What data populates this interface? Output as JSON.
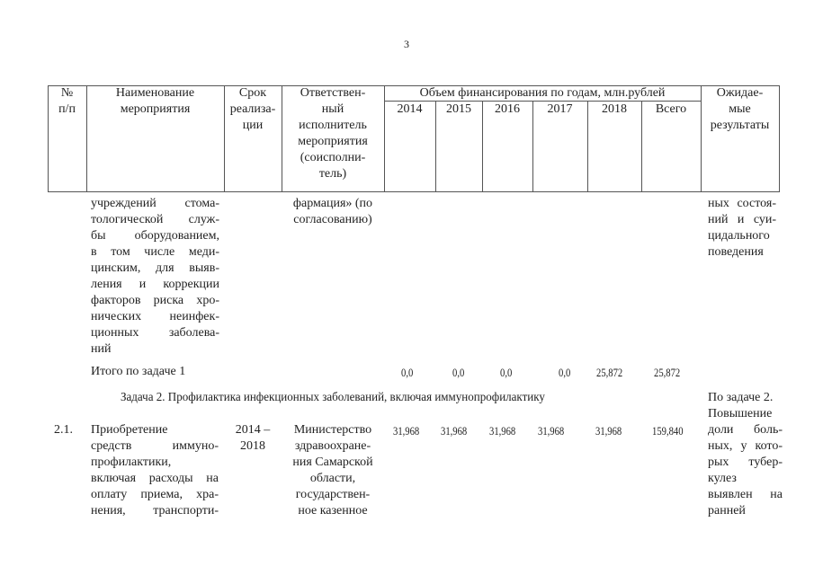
{
  "page_number": "3",
  "header": {
    "num": [
      "№",
      "п/п"
    ],
    "name": [
      "Наименование",
      "мероприятия"
    ],
    "term": [
      "Срок",
      "реализа-",
      "ции"
    ],
    "responsible": [
      "Ответствен-",
      "ный",
      "исполнитель",
      "мероприятия",
      "(соисполни-",
      "тель)"
    ],
    "funding": "Объем финансирования по годам, млн.рублей",
    "years": [
      "2014",
      "2015",
      "2016",
      "2017",
      "2018",
      "Всего"
    ],
    "results": [
      "Ожидае-",
      "мые",
      "результаты"
    ]
  },
  "continuation": {
    "name": [
      "учреждений стома-",
      "тологической служ-",
      "бы оборудованием,",
      "в том числе меди-",
      "цинским, для выяв-",
      "ления и коррекции",
      "факторов риска хро-",
      "нических неинфек-",
      "ционных заболева-",
      "ний"
    ],
    "responsible": [
      "фармация» (по",
      "согласованию)"
    ],
    "results": [
      "ных состоя-",
      "ний и суи-",
      "цидального",
      "поведения"
    ]
  },
  "total_task1": {
    "label": "Итого по задаче 1",
    "values": [
      "0,0",
      "0,0",
      "0,0",
      "0,0",
      "25,872",
      "25,872"
    ]
  },
  "task2": {
    "title": "Задача 2. Профилактика инфекционных заболеваний, включая иммунопрофилактику",
    "results_head": "По задаче 2."
  },
  "row_2_1": {
    "num": "2.1.",
    "name": [
      "Приобретение",
      "средств иммуно-",
      "профилактики,",
      "включая расходы на",
      "оплату приема, хра-",
      "нения, транспорти-"
    ],
    "term": [
      "2014 –",
      "2018"
    ],
    "responsible": [
      "Министерство",
      "здравоохране-",
      "ния Самарской",
      "области,",
      "государствен-",
      "ное казенное"
    ],
    "values": [
      "31,968",
      "31,968",
      "31,968",
      "31,968",
      "31,968",
      "159,840"
    ],
    "results": [
      "Повышение",
      "доли боль-",
      "ных, у кото-",
      "рых тубер-",
      "кулез",
      "выявлен на",
      "ранней"
    ]
  }
}
